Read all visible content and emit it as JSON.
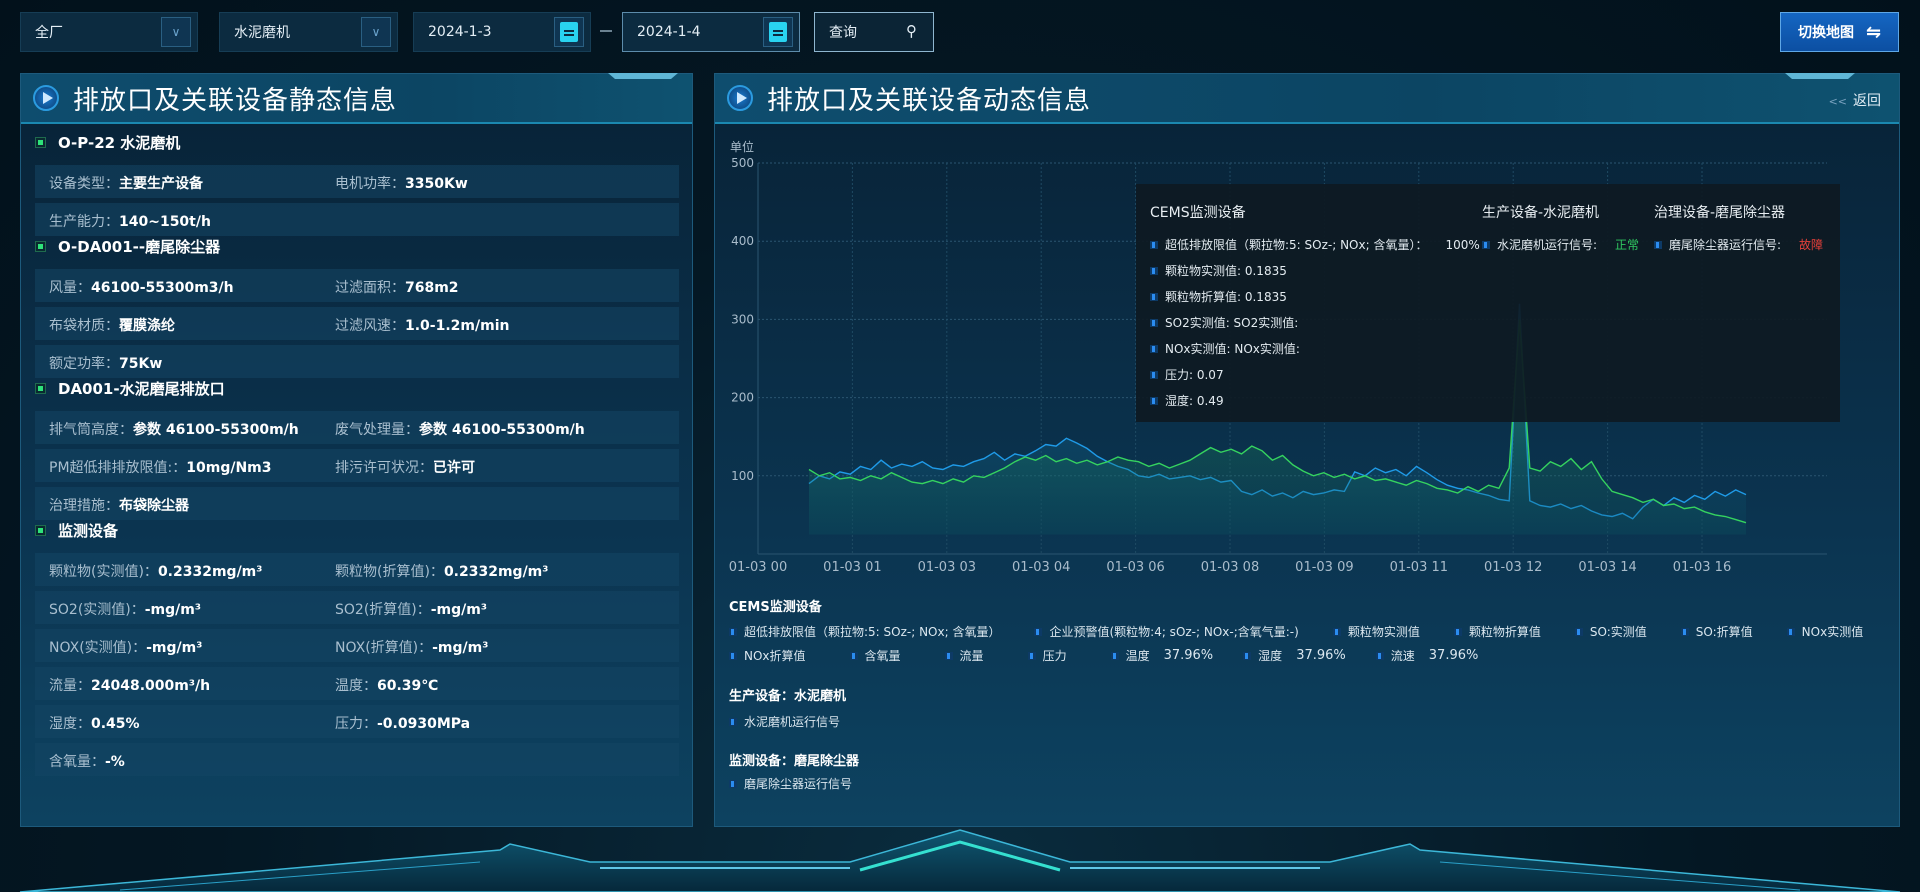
{
  "filters": {
    "factory": "全厂",
    "device": "水泥磨机",
    "start_date": "2024-1-3",
    "end_date": "2024-1-4",
    "query_label": "查询",
    "switch_map_label": "切换地图"
  },
  "left_panel": {
    "title": "排放口及关联设备静态信息",
    "sections": [
      {
        "title": "O-P-22 水泥磨机",
        "rows": [
          [
            {
              "label": "设备类型：",
              "value": "主要生产设备"
            },
            {
              "label": "电机功率：",
              "value": "3350Kw"
            }
          ],
          [
            {
              "label": "生产能力：",
              "value": "140~150t/h"
            }
          ]
        ]
      },
      {
        "title": "O-DA001--磨尾除尘器",
        "rows": [
          [
            {
              "label": "风量：",
              "value": "46100-55300m3/h"
            },
            {
              "label": "过滤面积：",
              "value": "768m2"
            }
          ],
          [
            {
              "label": "布袋材质：",
              "value": "覆膜涤纶"
            },
            {
              "label": "过滤风速：",
              "value": "1.0-1.2m/min"
            }
          ],
          [
            {
              "label": "额定功率：",
              "value": "75Kw"
            }
          ]
        ]
      },
      {
        "title": "DA001-水泥磨尾排放口",
        "rows": [
          [
            {
              "label": "排气筒高度：",
              "value": "参数 46100-55300m/h"
            },
            {
              "label": "废气处理量：",
              "value": "参数 46100-55300m/h"
            }
          ],
          [
            {
              "label": "PM超低排排放限值:：",
              "value": "10mg/Nm3"
            },
            {
              "label": "排污许可状况：",
              "value": "已许可"
            }
          ],
          [
            {
              "label": "治理措施：",
              "value": "布袋除尘器"
            }
          ]
        ]
      },
      {
        "title": "监测设备",
        "rows": [
          [
            {
              "label": "颗粒物(实测值)：",
              "value": "0.2332mg/m³"
            },
            {
              "label": "颗粒物(折算值)：",
              "value": "0.2332mg/m³"
            }
          ],
          [
            {
              "label": "SO2(实测值)：",
              "value": "-mg/m³"
            },
            {
              "label": "SO2(折算值)：",
              "value": "-mg/m³"
            }
          ],
          [
            {
              "label": "NOX(实测值)：",
              "value": "-mg/m³"
            },
            {
              "label": "NOX(折算值)：",
              "value": "-mg/m³"
            }
          ],
          [
            {
              "label": "流量：",
              "value": "24048.000m³/h"
            },
            {
              "label": "温度：",
              "value": "60.39℃"
            }
          ],
          [
            {
              "label": "湿度：",
              "value": "0.45%"
            },
            {
              "label": "压力：",
              "value": "-0.0930MPa"
            }
          ],
          [
            {
              "label": "含氧量：",
              "value": "-%"
            }
          ]
        ]
      }
    ]
  },
  "right_panel": {
    "title": "排放口及关联设备动态信息",
    "back_label": "返回",
    "tooltip": {
      "cems_title": "CEMS监测设备",
      "cems_items": [
        "超低排放限值（颗拉物:5: SOz-; NOx; 含氧量）：",
        "颗粒物实测值: 0.1835",
        "颗粒物折算值: 0.1835",
        "SO2实测值: SO2实测值:",
        "NOx实测值: NOx实测值:",
        "压力: 0.07",
        "湿度: 0.49"
      ],
      "cems_limit_value": "100%",
      "prod_title": "生产设备-水泥磨机",
      "prod_item": "水泥磨机运行信号:",
      "prod_status": "正常",
      "treat_title": "治理设备-磨尾除尘器",
      "treat_item": "磨尾除尘器运行信号:",
      "treat_status": "故障"
    },
    "legend": {
      "cems_title": "CEMS监测设备",
      "row1": [
        "超低排放限值（颗拉物:5: SOz-; NOx; 含氧量）",
        "企业预警值(颗粒物:4; sOz-; NOx-;含氧气量:-)",
        "颗粒物实测值",
        "颗粒物折算值",
        "SO:实测值",
        "SO:折算值",
        "NOx实测值"
      ],
      "row2": [
        {
          "name": "NOx折算值",
          "value": ""
        },
        {
          "name": "含氧量",
          "value": ""
        },
        {
          "name": "流量",
          "value": ""
        },
        {
          "name": "压力",
          "value": ""
        },
        {
          "name": "温度",
          "value": "37.96%"
        },
        {
          "name": "湿度",
          "value": "37.96%"
        },
        {
          "name": "流速",
          "value": "37.96%"
        }
      ],
      "prod_title": "生产设备：水泥磨机",
      "prod_item": "水泥磨机运行信号",
      "monitor_title": "监测设备：磨尾除尘器",
      "monitor_item": "磨尾除尘器运行信号"
    }
  },
  "colors": {
    "status_normal": "#2fc760",
    "status_fault": "#e6403a",
    "series_blue": "#1f9be8",
    "series_green": "#35d35f",
    "accent": "#1566c2"
  },
  "chart_data": {
    "type": "line",
    "ylabel": "单位",
    "ylim": [
      0,
      500
    ],
    "yticks": [
      100,
      200,
      300,
      400,
      500
    ],
    "grid": true,
    "xticks": [
      "01-03 00",
      "01-03 01",
      "01-03 03",
      "01-03 04",
      "01-03 06",
      "01-03 08",
      "01-03 09",
      "01-03 11",
      "01-03 12",
      "01-03 14",
      "01-03 16"
    ],
    "series": [
      {
        "color": "#1f9be8",
        "values": [
          90,
          100,
          96,
          105,
          102,
          112,
          108,
          120,
          110,
          115,
          112,
          118,
          110,
          108,
          114,
          112,
          118,
          122,
          130,
          120,
          128,
          125,
          132,
          140,
          138,
          148,
          142,
          135,
          125,
          118,
          112,
          108,
          100,
          98,
          102,
          96,
          98,
          100,
          95,
          98,
          92,
          94,
          80,
          76,
          82,
          74,
          78,
          72,
          80,
          76,
          78,
          82,
          80,
          105,
          100,
          110,
          104,
          108,
          100,
          112,
          104,
          95,
          88,
          84,
          82,
          78,
          75,
          70,
          68,
          320,
          68,
          62,
          60,
          64,
          58,
          62,
          55,
          50,
          48,
          52,
          45,
          60,
          70,
          62,
          72,
          66,
          75,
          70,
          80,
          74,
          82,
          76
        ]
      },
      {
        "color": "#35d35f",
        "values": [
          108,
          100,
          104,
          96,
          98,
          94,
          100,
          96,
          104,
          98,
          92,
          90,
          94,
          90,
          96,
          92,
          100,
          98,
          104,
          110,
          118,
          124,
          120,
          126,
          118,
          122,
          116,
          120,
          114,
          118,
          124,
          120,
          118,
          112,
          116,
          110,
          115,
          120,
          128,
          136,
          130,
          134,
          128,
          138,
          132,
          120,
          126,
          114,
          106,
          100,
          104,
          98,
          102,
          96,
          100,
          94,
          96,
          92,
          88,
          94,
          90,
          84,
          82,
          78,
          86,
          80,
          88,
          84,
          110,
          300,
          110,
          106,
          118,
          112,
          122,
          108,
          118,
          96,
          80,
          76,
          72,
          66,
          70,
          62,
          64,
          58,
          60,
          54,
          50,
          48,
          44,
          40
        ]
      }
    ]
  }
}
